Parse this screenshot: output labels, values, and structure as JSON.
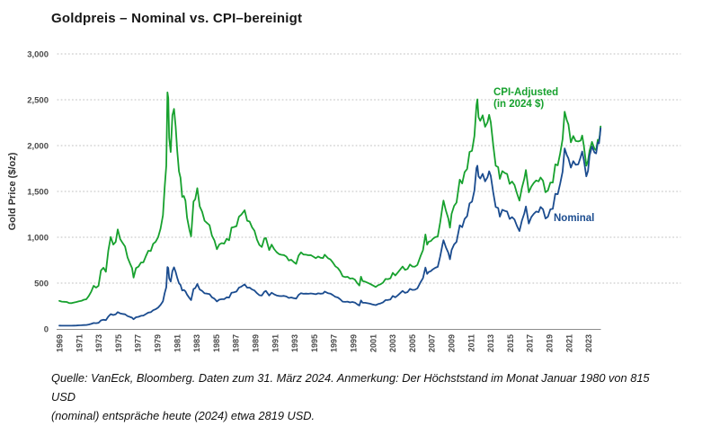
{
  "header": {
    "title": "Goldpreis – Nominal vs. CPI–bereinigt"
  },
  "chart_data": {
    "type": "line",
    "title": "Goldpreis – Nominal vs. CPI–bereinigt",
    "xlabel": "",
    "ylabel": "Gold Price ($/oz)",
    "ylim": [
      0,
      3000
    ],
    "xlim": [
      1969,
      2024.25
    ],
    "grid": "horizontal-dotted",
    "legend_position": "inline-annotations",
    "yticks": [
      0,
      500,
      1000,
      1500,
      2000,
      2500,
      3000
    ],
    "ytick_labels": [
      "0",
      "500",
      "1,000",
      "1,500",
      "2,000",
      "2,500",
      "3,000"
    ],
    "xticks": [
      1969,
      1971,
      1973,
      1975,
      1977,
      1979,
      1981,
      1983,
      1985,
      1987,
      1989,
      1991,
      1993,
      1995,
      1997,
      1999,
      2001,
      2003,
      2005,
      2007,
      2009,
      2011,
      2013,
      2015,
      2017,
      2019,
      2021,
      2023
    ],
    "series": [
      {
        "name": "Nominal",
        "color": "#1b4c8f",
        "points_index": 1
      },
      {
        "name": "CPI-Adjusted (in 2024 $)",
        "color": "#17a12e",
        "points_index": 2
      }
    ],
    "legend": {
      "cpi": {
        "line1": "CPI-Adjusted",
        "line2": "(in 2024 $)"
      },
      "nominal": {
        "line1": "Nominal"
      }
    },
    "points": [
      [
        1969.0,
        36,
        306
      ],
      [
        1969.25,
        35,
        298
      ],
      [
        1969.5,
        35,
        296
      ],
      [
        1969.75,
        35,
        294
      ],
      [
        1970.0,
        35,
        282
      ],
      [
        1970.25,
        35,
        281
      ],
      [
        1970.5,
        36,
        288
      ],
      [
        1970.75,
        37,
        294
      ],
      [
        1971.0,
        39,
        301
      ],
      [
        1971.25,
        40,
        306
      ],
      [
        1971.5,
        42,
        319
      ],
      [
        1971.75,
        43,
        324
      ],
      [
        1972.0,
        48,
        359
      ],
      [
        1972.25,
        55,
        405
      ],
      [
        1972.5,
        65,
        471
      ],
      [
        1972.75,
        63,
        450
      ],
      [
        1973.0,
        67,
        471
      ],
      [
        1973.25,
        93,
        637
      ],
      [
        1973.5,
        100,
        668
      ],
      [
        1973.75,
        96,
        624
      ],
      [
        1974.0,
        135,
        854
      ],
      [
        1974.25,
        162,
        1004
      ],
      [
        1974.5,
        152,
        921
      ],
      [
        1974.75,
        160,
        950
      ],
      [
        1974.96,
        183,
        1085
      ],
      [
        1975.21,
        170,
        980
      ],
      [
        1975.46,
        164,
        938
      ],
      [
        1975.71,
        160,
        900
      ],
      [
        1975.96,
        140,
        780
      ],
      [
        1976.21,
        131,
        715
      ],
      [
        1976.42,
        123,
        665
      ],
      [
        1976.58,
        106,
        560
      ],
      [
        1976.83,
        127,
        664
      ],
      [
        1977.08,
        132,
        680
      ],
      [
        1977.33,
        143,
        724
      ],
      [
        1977.58,
        146,
        726
      ],
      [
        1977.83,
        162,
        791
      ],
      [
        1978.08,
        178,
        853
      ],
      [
        1978.33,
        182,
        850
      ],
      [
        1978.58,
        204,
        928
      ],
      [
        1978.83,
        215,
        950
      ],
      [
        1979.08,
        233,
        1000
      ],
      [
        1979.33,
        262,
        1093
      ],
      [
        1979.58,
        302,
        1240
      ],
      [
        1979.75,
        390,
        1545
      ],
      [
        1979.92,
        455,
        1780
      ],
      [
        1980.04,
        675,
        2580
      ],
      [
        1980.12,
        665,
        2520
      ],
      [
        1980.21,
        553,
        2085
      ],
      [
        1980.37,
        517,
        1930
      ],
      [
        1980.54,
        630,
        2330
      ],
      [
        1980.71,
        673,
        2400
      ],
      [
        1980.87,
        623,
        2210
      ],
      [
        1981.04,
        557,
        1940
      ],
      [
        1981.21,
        499,
        1720
      ],
      [
        1981.37,
        480,
        1650
      ],
      [
        1981.54,
        420,
        1440
      ],
      [
        1981.71,
        425,
        1450
      ],
      [
        1981.87,
        410,
        1400
      ],
      [
        1982.04,
        375,
        1215
      ],
      [
        1982.29,
        335,
        1075
      ],
      [
        1982.45,
        315,
        1010
      ],
      [
        1982.7,
        435,
        1390
      ],
      [
        1982.87,
        445,
        1415
      ],
      [
        1983.08,
        490,
        1535
      ],
      [
        1983.33,
        430,
        1337
      ],
      [
        1983.58,
        415,
        1278
      ],
      [
        1983.83,
        388,
        1180
      ],
      [
        1984.08,
        385,
        1155
      ],
      [
        1984.33,
        380,
        1132
      ],
      [
        1984.58,
        345,
        1018
      ],
      [
        1984.83,
        330,
        967
      ],
      [
        1985.08,
        300,
        870
      ],
      [
        1985.33,
        320,
        922
      ],
      [
        1985.58,
        325,
        936
      ],
      [
        1985.83,
        325,
        930
      ],
      [
        1986.08,
        345,
        983
      ],
      [
        1986.33,
        342,
        968
      ],
      [
        1986.58,
        395,
        1106
      ],
      [
        1986.83,
        400,
        1112
      ],
      [
        1987.08,
        408,
        1122
      ],
      [
        1987.33,
        450,
        1224
      ],
      [
        1987.58,
        462,
        1247
      ],
      [
        1987.92,
        486,
        1295
      ],
      [
        1988.17,
        450,
        1180
      ],
      [
        1988.42,
        451,
        1172
      ],
      [
        1988.67,
        430,
        1109
      ],
      [
        1988.92,
        420,
        1071
      ],
      [
        1989.17,
        390,
        975
      ],
      [
        1989.42,
        368,
        916
      ],
      [
        1989.67,
        365,
        894
      ],
      [
        1989.92,
        405,
        985
      ],
      [
        1990.08,
        415,
        992
      ],
      [
        1990.42,
        365,
        861
      ],
      [
        1990.67,
        395,
        920
      ],
      [
        1990.92,
        378,
        873
      ],
      [
        1991.17,
        366,
        838
      ],
      [
        1991.42,
        360,
        817
      ],
      [
        1991.67,
        358,
        809
      ],
      [
        1991.92,
        361,
        806
      ],
      [
        1992.17,
        354,
        789
      ],
      [
        1992.42,
        338,
        747
      ],
      [
        1992.67,
        343,
        755
      ],
      [
        1992.92,
        335,
        730
      ],
      [
        1993.17,
        330,
        710
      ],
      [
        1993.42,
        372,
        800
      ],
      [
        1993.67,
        390,
        835
      ],
      [
        1993.92,
        383,
        812
      ],
      [
        1994.17,
        385,
        810
      ],
      [
        1994.42,
        383,
        804
      ],
      [
        1994.67,
        387,
        805
      ],
      [
        1994.92,
        383,
        789
      ],
      [
        1995.17,
        378,
        772
      ],
      [
        1995.42,
        388,
        790
      ],
      [
        1995.67,
        384,
        776
      ],
      [
        1995.92,
        387,
        774
      ],
      [
        1996.08,
        408,
        810
      ],
      [
        1996.42,
        390,
        772
      ],
      [
        1996.67,
        385,
        758
      ],
      [
        1996.92,
        370,
        725
      ],
      [
        1997.17,
        350,
        683
      ],
      [
        1997.42,
        343,
        665
      ],
      [
        1997.67,
        324,
        629
      ],
      [
        1997.92,
        298,
        575
      ],
      [
        1998.17,
        295,
        566
      ],
      [
        1998.42,
        298,
        569
      ],
      [
        1998.67,
        289,
        549
      ],
      [
        1998.92,
        294,
        553
      ],
      [
        1999.17,
        287,
        537
      ],
      [
        1999.42,
        268,
        498
      ],
      [
        1999.62,
        256,
        474
      ],
      [
        1999.79,
        311,
        570
      ],
      [
        1999.96,
        285,
        522
      ],
      [
        2000.21,
        285,
        516
      ],
      [
        2000.46,
        280,
        504
      ],
      [
        2000.71,
        275,
        492
      ],
      [
        2000.96,
        268,
        477
      ],
      [
        2001.29,
        260,
        458
      ],
      [
        2001.54,
        272,
        477
      ],
      [
        2001.79,
        278,
        487
      ],
      [
        2002.04,
        290,
        505
      ],
      [
        2002.29,
        315,
        545
      ],
      [
        2002.54,
        316,
        543
      ],
      [
        2002.79,
        322,
        552
      ],
      [
        2003.04,
        360,
        612
      ],
      [
        2003.29,
        345,
        583
      ],
      [
        2003.54,
        366,
        615
      ],
      [
        2003.79,
        390,
        648
      ],
      [
        2004.04,
        415,
        680
      ],
      [
        2004.29,
        393,
        644
      ],
      [
        2004.54,
        402,
        655
      ],
      [
        2004.79,
        437,
        703
      ],
      [
        2005.04,
        425,
        680
      ],
      [
        2005.29,
        427,
        679
      ],
      [
        2005.54,
        442,
        698
      ],
      [
        2005.87,
        510,
        795
      ],
      [
        2006.12,
        555,
        860
      ],
      [
        2006.37,
        670,
        1030
      ],
      [
        2006.54,
        600,
        920
      ],
      [
        2006.71,
        622,
        952
      ],
      [
        2006.92,
        630,
        958
      ],
      [
        2007.12,
        650,
        982
      ],
      [
        2007.37,
        667,
        1001
      ],
      [
        2007.62,
        677,
        1009
      ],
      [
        2007.87,
        790,
        1161
      ],
      [
        2008.12,
        925,
        1341
      ],
      [
        2008.21,
        968,
        1400
      ],
      [
        2008.46,
        890,
        1290
      ],
      [
        2008.71,
        830,
        1204
      ],
      [
        2008.87,
        760,
        1105
      ],
      [
        2009.04,
        860,
        1255
      ],
      [
        2009.29,
        922,
        1342
      ],
      [
        2009.54,
        950,
        1378
      ],
      [
        2009.87,
        1130,
        1628
      ],
      [
        2010.12,
        1110,
        1587
      ],
      [
        2010.37,
        1200,
        1710
      ],
      [
        2010.62,
        1230,
        1745
      ],
      [
        2010.87,
        1370,
        1930
      ],
      [
        2011.12,
        1388,
        1943
      ],
      [
        2011.37,
        1510,
        2105
      ],
      [
        2011.58,
        1755,
        2440
      ],
      [
        2011.67,
        1780,
        2505
      ],
      [
        2011.79,
        1665,
        2310
      ],
      [
        2011.96,
        1640,
        2270
      ],
      [
        2012.21,
        1692,
        2330
      ],
      [
        2012.46,
        1610,
        2205
      ],
      [
        2012.71,
        1655,
        2255
      ],
      [
        2012.87,
        1720,
        2335
      ],
      [
        2013.04,
        1670,
        2255
      ],
      [
        2013.29,
        1485,
        2000
      ],
      [
        2013.54,
        1330,
        1780
      ],
      [
        2013.79,
        1320,
        1765
      ],
      [
        2013.96,
        1225,
        1637
      ],
      [
        2014.21,
        1300,
        1722
      ],
      [
        2014.46,
        1288,
        1702
      ],
      [
        2014.71,
        1280,
        1690
      ],
      [
        2014.96,
        1200,
        1582
      ],
      [
        2015.21,
        1220,
        1608
      ],
      [
        2015.46,
        1193,
        1570
      ],
      [
        2015.71,
        1125,
        1480
      ],
      [
        2015.96,
        1068,
        1400
      ],
      [
        2016.21,
        1180,
        1537
      ],
      [
        2016.46,
        1260,
        1638
      ],
      [
        2016.62,
        1335,
        1733
      ],
      [
        2016.92,
        1150,
        1490
      ],
      [
        2017.17,
        1220,
        1553
      ],
      [
        2017.42,
        1255,
        1592
      ],
      [
        2017.67,
        1280,
        1620
      ],
      [
        2017.92,
        1275,
        1610
      ],
      [
        2018.12,
        1330,
        1652
      ],
      [
        2018.37,
        1305,
        1617
      ],
      [
        2018.62,
        1205,
        1491
      ],
      [
        2018.87,
        1225,
        1512
      ],
      [
        2019.12,
        1305,
        1597
      ],
      [
        2019.37,
        1310,
        1597
      ],
      [
        2019.62,
        1475,
        1795
      ],
      [
        2019.87,
        1470,
        1785
      ],
      [
        2020.12,
        1585,
        1915
      ],
      [
        2020.37,
        1715,
        2070
      ],
      [
        2020.58,
        1970,
        2370
      ],
      [
        2020.79,
        1900,
        2280
      ],
      [
        2020.96,
        1860,
        2230
      ],
      [
        2021.21,
        1760,
        2035
      ],
      [
        2021.46,
        1830,
        2105
      ],
      [
        2021.71,
        1790,
        2050
      ],
      [
        2021.96,
        1795,
        2045
      ],
      [
        2022.21,
        1875,
        2055
      ],
      [
        2022.37,
        1935,
        2110
      ],
      [
        2022.54,
        1840,
        1995
      ],
      [
        2022.79,
        1665,
        1780
      ],
      [
        2022.96,
        1725,
        1835
      ],
      [
        2023.12,
        1890,
        1945
      ],
      [
        2023.37,
        1990,
        2040
      ],
      [
        2023.62,
        1925,
        1965
      ],
      [
        2023.79,
        1915,
        1950
      ],
      [
        2023.96,
        2035,
        2065
      ],
      [
        2024.08,
        2025,
        2045
      ],
      [
        2024.17,
        2110,
        2125
      ],
      [
        2024.25,
        2190,
        2210
      ]
    ]
  },
  "footer": {
    "lines": [
      "Quelle: VanEck, Bloomberg. Daten zum 31. März 2024. Anmerkung: Der Höchststand im Monat Januar 1980 von 815",
      "USD",
      "(nominal) entspräche heute (2024) etwa 2819 USD."
    ]
  }
}
